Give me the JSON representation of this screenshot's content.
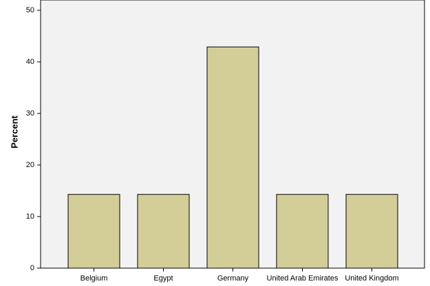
{
  "chart_data": {
    "type": "bar",
    "y_label": "Percent",
    "categories": [
      "Belgium",
      "Egypt",
      "Germany",
      "United Arab Emirates",
      "United Kingdom"
    ],
    "values": [
      14.3,
      14.3,
      42.9,
      14.3,
      14.3
    ],
    "color": "#d3ce97",
    "ylim": [
      0,
      52
    ],
    "yticks": [
      0,
      10,
      20,
      30,
      40,
      50
    ],
    "grid": false
  }
}
